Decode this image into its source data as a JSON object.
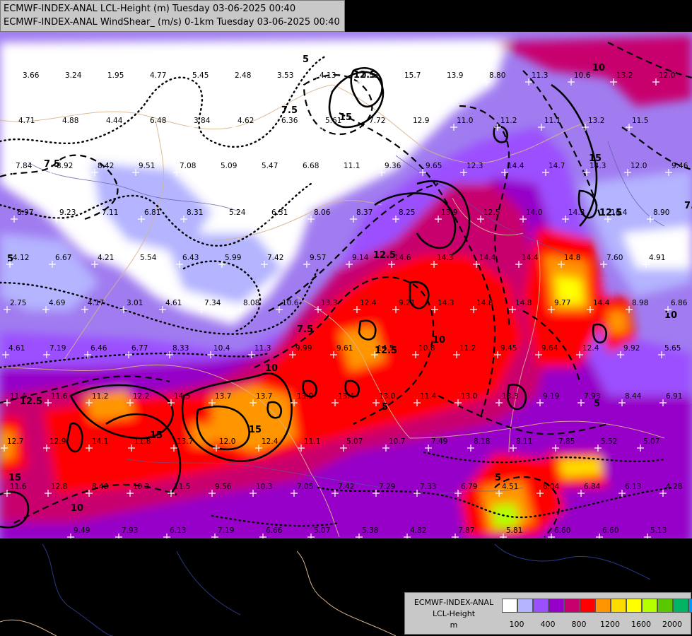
{
  "title": {
    "line1": "ECMWF-INDEX-ANAL LCL-Height (m) Tuesday 03-06-2025 00:40",
    "line2": "ECMWF-INDEX-ANAL WindShear_ (m/s) 0-1km Tuesday 03-06-2025 00:40"
  },
  "legend": {
    "name_line1": "ECMWF-INDEX-ANAL",
    "name_line2": "LCL-Height",
    "name_line3": "m",
    "colors": [
      "#ffffff",
      "#b4b4ff",
      "#9b50ff",
      "#9600c8",
      "#c8006e",
      "#ff0000",
      "#ff9600",
      "#ffdc00",
      "#ffff00",
      "#b4ff00",
      "#5ac800",
      "#00b464",
      "#0096ff"
    ],
    "tick_labels": [
      "100",
      "400",
      "800",
      "1200",
      "1600",
      "2000"
    ]
  },
  "contour_labels": [
    "7.5",
    "10",
    "12.5",
    "15",
    "5"
  ],
  "station_values": [
    "3.66",
    "3.24",
    "1.95",
    "4.77",
    "5.45",
    "2.48",
    "3.53",
    "4.13",
    "9.53",
    "15.7",
    "13.9",
    "8.80",
    "11.3",
    "10.6",
    "13.2",
    "12.0",
    "4.71",
    "4.88",
    "4.44",
    "6.48",
    "3.84",
    "4.62",
    "6.36",
    "5.61",
    "7.72",
    "12.9",
    "11.0",
    "11.2",
    "11.1",
    "13.2",
    "11.5",
    "7.84",
    "8.92",
    "8.42",
    "9.51",
    "7.08",
    "5.09",
    "5.47",
    "6.68",
    "11.1",
    "9.36",
    "9.65",
    "12.3",
    "14.4",
    "14.7",
    "14.3",
    "12.0",
    "9.46",
    "8.97",
    "9.23",
    "7.11",
    "6.81",
    "8.31",
    "5.24",
    "6.31",
    "8.06",
    "8.37",
    "8.25",
    "13.9",
    "12.5",
    "14.0",
    "14.3",
    "14.4",
    "8.90",
    "4.12",
    "6.67",
    "4.21",
    "5.54",
    "6.43",
    "5.99",
    "7.42",
    "9.57",
    "9.14",
    "14.6",
    "14.3",
    "14.4",
    "14.4",
    "14.8",
    "7.60",
    "4.91",
    "2.75",
    "4.69",
    "4.17",
    "3.01",
    "4.61",
    "7.34",
    "8.08",
    "10.6",
    "13.3",
    "12.4",
    "9.21",
    "14.3",
    "14.8",
    "14.8",
    "9.77",
    "14.4",
    "8.98",
    "6.86",
    "4.61",
    "7.19",
    "6.46",
    "6.77",
    "8.33",
    "10.4",
    "11.3",
    "9.99",
    "9.61",
    "14.5",
    "10.8",
    "11.2",
    "9.45",
    "9.64",
    "12.4",
    "9.92",
    "5.65",
    "11.4",
    "11.6",
    "11.2",
    "12.2",
    "14.5",
    "13.7",
    "13.7",
    "13.9",
    "13.4",
    "13.0",
    "11.4",
    "13.0",
    "13.3",
    "9.19",
    "7.93",
    "8.44",
    "6.91",
    "12.7",
    "12.9",
    "14.1",
    "11.8",
    "13.7",
    "12.0",
    "12.4",
    "11.1",
    "5.07",
    "10.7",
    "7.49",
    "8.18",
    "8.11",
    "7.85",
    "5.52",
    "5.07",
    "11.6",
    "12.8",
    "8.40",
    "10.3",
    "11.5",
    "9.56",
    "10.3",
    "7.05",
    "7.42",
    "7.29",
    "7.33",
    "6.79",
    "4.51",
    "6.04",
    "6.84",
    "6.13",
    "4.28",
    "9.49",
    "7.93",
    "6.13",
    "7.19",
    "6.66",
    "5.07",
    "5.38",
    "4.82",
    "7.87",
    "5.81",
    "6.60",
    "6.60",
    "5.13"
  ]
}
